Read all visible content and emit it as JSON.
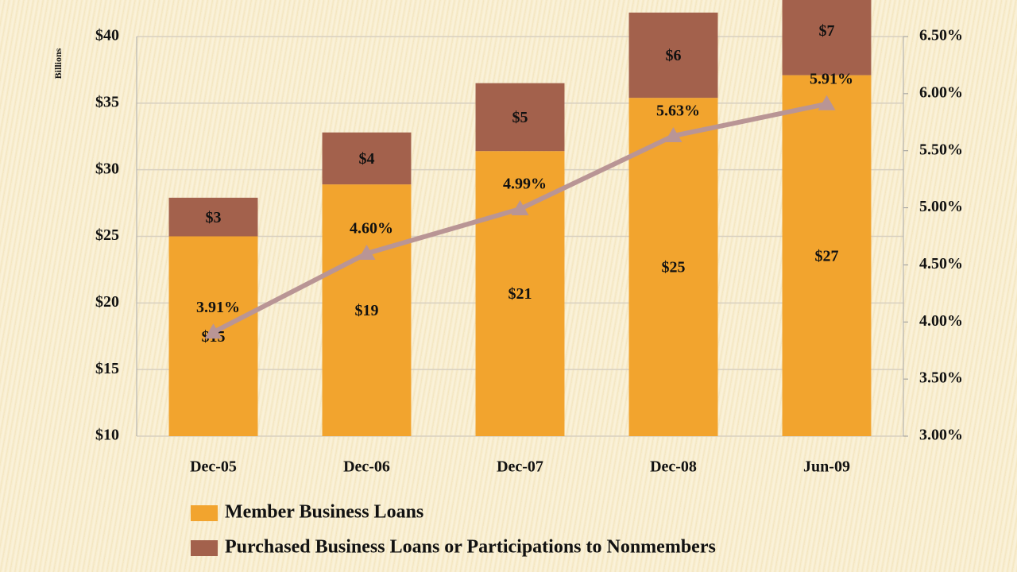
{
  "chart_data": {
    "type": "bar",
    "stacked": true,
    "ylabel": "Billions",
    "categories": [
      "Dec-05",
      "Dec-06",
      "Dec-07",
      "Dec-08",
      "Jun-09"
    ],
    "series": [
      {
        "name": "Member Business Loans",
        "color": "#f2a42e",
        "values": [
          15,
          18.9,
          21.4,
          25.4,
          27.1
        ],
        "value_labels": [
          "$15",
          "$19",
          "$21",
          "$25",
          "$27"
        ]
      },
      {
        "name": "Purchased Business Loans or Participations to Nonmembers",
        "color": "#a3614c",
        "values": [
          2.9,
          3.9,
          5.1,
          6.4,
          6.7
        ],
        "value_labels": [
          "$3",
          "$4",
          "$5",
          "$6",
          "$7"
        ]
      },
      {
        "type": "line",
        "axis": "y2",
        "color": "#b99595",
        "values": [
          3.91,
          4.6,
          4.99,
          5.63,
          5.91
        ],
        "value_labels": [
          "3.91%",
          "4.60%",
          "4.99%",
          "5.63%",
          "5.91%"
        ]
      }
    ],
    "ylim": [
      10,
      40
    ],
    "yticks": [
      {
        "value": 10,
        "label": "$10"
      },
      {
        "value": 15,
        "label": "$15"
      },
      {
        "value": 20,
        "label": "$20"
      },
      {
        "value": 25,
        "label": "$25"
      },
      {
        "value": 30,
        "label": "$30"
      },
      {
        "value": 35,
        "label": "$35"
      },
      {
        "value": 40,
        "label": "$40"
      }
    ],
    "y2lim": [
      3,
      6.5
    ],
    "y2ticks": [
      {
        "value": 3,
        "label": "3.00%"
      },
      {
        "value": 3.5,
        "label": "3.50%"
      },
      {
        "value": 4,
        "label": "4.00%"
      },
      {
        "value": 4.5,
        "label": "4.50%"
      },
      {
        "value": 5,
        "label": "5.00%"
      },
      {
        "value": 5.5,
        "label": "5.50%"
      },
      {
        "value": 6,
        "label": "6.00%"
      },
      {
        "value": 6.5,
        "label": "6.50%"
      }
    ],
    "grid": true
  }
}
